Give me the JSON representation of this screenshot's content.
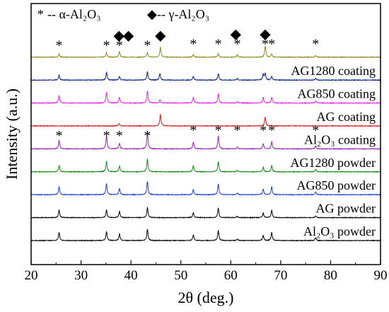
{
  "chart_data": {
    "type": "line",
    "title": "",
    "xlabel": "2θ (deg.)",
    "ylabel": "Intensity (a.u.)",
    "xlim": [
      20,
      90
    ],
    "x_ticks": [
      20,
      30,
      40,
      50,
      60,
      70,
      80,
      90
    ],
    "y_ticks_shown": false,
    "grid": false,
    "legend": {
      "placement": "top-left",
      "entries": [
        {
          "symbol": "*",
          "text": "-- α-Al₂O₃",
          "phase": "alpha"
        },
        {
          "symbol": "◆",
          "text": "-- γ-Al₂O₃",
          "phase": "gamma"
        }
      ]
    },
    "series": [
      {
        "name": "",
        "color": "#8b8b1f",
        "offset": 9,
        "peaks": [
          [
            25.6,
            0.25
          ],
          [
            35.1,
            0.35
          ],
          [
            37.7,
            0.45
          ],
          [
            43.3,
            0.35
          ],
          [
            45.9,
            0.8
          ],
          [
            52.5,
            0.2
          ],
          [
            57.5,
            0.3
          ],
          [
            61.3,
            0.2
          ],
          [
            66.9,
            0.9
          ],
          [
            68.2,
            0.25
          ],
          [
            77.0,
            0.12
          ]
        ]
      },
      {
        "name": "AG1280 coating",
        "color": "#0b1e8c",
        "offset": 8,
        "peaks": [
          [
            25.6,
            0.4
          ],
          [
            35.1,
            0.6
          ],
          [
            37.7,
            0.3
          ],
          [
            43.3,
            0.65
          ],
          [
            45.8,
            0.5
          ],
          [
            52.5,
            0.3
          ],
          [
            57.5,
            0.5
          ],
          [
            61.3,
            0.12
          ],
          [
            66.5,
            0.45
          ],
          [
            66.9,
            0.5
          ],
          [
            68.2,
            0.3
          ],
          [
            77.0,
            0.15
          ]
        ]
      },
      {
        "name": "AG850 coating",
        "color": "#ee22ee",
        "offset": 7,
        "peaks": [
          [
            25.6,
            0.6
          ],
          [
            35.1,
            0.85
          ],
          [
            37.7,
            0.45
          ],
          [
            43.3,
            0.95
          ],
          [
            45.8,
            0.25
          ],
          [
            52.5,
            0.45
          ],
          [
            57.5,
            0.7
          ],
          [
            61.3,
            0.12
          ],
          [
            66.5,
            0.45
          ],
          [
            68.2,
            0.45
          ],
          [
            77.0,
            0.15
          ]
        ]
      },
      {
        "name": "AG coating",
        "color": "#dd1111",
        "offset": 6,
        "peaks": [
          [
            37.6,
            0.2
          ],
          [
            45.9,
            0.9
          ],
          [
            66.9,
            0.7
          ]
        ]
      },
      {
        "name": "Al₂O₃ coating",
        "color": "#9a1fb8",
        "offset": 5,
        "peaks": [
          [
            25.6,
            0.65
          ],
          [
            35.1,
            1.05
          ],
          [
            37.7,
            0.45
          ],
          [
            43.3,
            1.3
          ],
          [
            52.5,
            0.55
          ],
          [
            57.5,
            1.0
          ],
          [
            61.3,
            0.15
          ],
          [
            66.5,
            0.4
          ],
          [
            68.2,
            0.55
          ],
          [
            77.0,
            0.25
          ]
        ]
      },
      {
        "name": "AG1280 powder",
        "color": "#148a14",
        "offset": 4,
        "peaks": [
          [
            25.6,
            0.5
          ],
          [
            35.1,
            0.85
          ],
          [
            37.7,
            0.45
          ],
          [
            43.3,
            1.0
          ],
          [
            52.5,
            0.5
          ],
          [
            57.5,
            0.8
          ],
          [
            61.3,
            0.12
          ],
          [
            66.5,
            0.35
          ],
          [
            68.2,
            0.5
          ],
          [
            77.0,
            0.2
          ]
        ]
      },
      {
        "name": "AG850 powder",
        "color": "#1a3fd6",
        "offset": 3,
        "peaks": [
          [
            25.6,
            0.6
          ],
          [
            35.1,
            0.9
          ],
          [
            37.7,
            0.5
          ],
          [
            43.3,
            1.05
          ],
          [
            52.5,
            0.4
          ],
          [
            57.5,
            0.85
          ],
          [
            61.3,
            0.12
          ],
          [
            66.5,
            0.45
          ],
          [
            68.2,
            0.65
          ],
          [
            77.0,
            0.22
          ]
        ]
      },
      {
        "name": "AG powder",
        "color": "#000000",
        "offset": 2,
        "peaks": [
          [
            25.6,
            0.6
          ],
          [
            35.1,
            0.6
          ],
          [
            37.7,
            0.5
          ],
          [
            43.3,
            0.8
          ],
          [
            52.5,
            0.4
          ],
          [
            57.5,
            0.75
          ],
          [
            61.3,
            0.1
          ],
          [
            66.5,
            0.35
          ],
          [
            68.2,
            0.6
          ],
          [
            77.0,
            0.15
          ]
        ]
      },
      {
        "name": "Al₂O₃ powder",
        "color": "#000000",
        "offset": 1,
        "peaks": [
          [
            25.6,
            0.65
          ],
          [
            35.1,
            0.7
          ],
          [
            37.7,
            0.5
          ],
          [
            43.3,
            0.9
          ],
          [
            52.5,
            0.45
          ],
          [
            57.5,
            0.8
          ],
          [
            61.3,
            0.12
          ],
          [
            66.5,
            0.4
          ],
          [
            68.2,
            0.65
          ],
          [
            77.0,
            0.2
          ]
        ]
      }
    ],
    "annotations": [
      {
        "trace": 0,
        "phase": "alpha",
        "x": 25.6
      },
      {
        "trace": 0,
        "phase": "alpha",
        "x": 35.1
      },
      {
        "trace": 0,
        "phase": "alpha",
        "x": 37.7
      },
      {
        "trace": 0,
        "phase": "alpha",
        "x": 43.3
      },
      {
        "trace": 0,
        "phase": "alpha",
        "x": 52.5
      },
      {
        "trace": 0,
        "phase": "alpha",
        "x": 57.5
      },
      {
        "trace": 0,
        "phase": "alpha",
        "x": 61.3
      },
      {
        "trace": 0,
        "phase": "alpha",
        "x": 66.9
      },
      {
        "trace": 0,
        "phase": "alpha",
        "x": 68.2
      },
      {
        "trace": 0,
        "phase": "alpha",
        "x": 77.0
      },
      {
        "trace": 0,
        "phase": "gamma",
        "x": 37.6
      },
      {
        "trace": 0,
        "phase": "gamma",
        "x": 39.5
      },
      {
        "trace": 0,
        "phase": "gamma",
        "x": 45.9
      },
      {
        "trace": 0,
        "phase": "gamma",
        "x": 61.0
      },
      {
        "trace": 0,
        "phase": "gamma",
        "x": 66.9
      },
      {
        "trace": 4,
        "phase": "alpha",
        "x": 25.6
      },
      {
        "trace": 4,
        "phase": "alpha",
        "x": 35.1
      },
      {
        "trace": 4,
        "phase": "alpha",
        "x": 37.7
      },
      {
        "trace": 4,
        "phase": "alpha",
        "x": 43.3
      },
      {
        "trace": 4,
        "phase": "alpha",
        "x": 52.5
      },
      {
        "trace": 4,
        "phase": "alpha",
        "x": 57.5
      },
      {
        "trace": 4,
        "phase": "alpha",
        "x": 61.3
      },
      {
        "trace": 4,
        "phase": "alpha",
        "x": 66.5
      },
      {
        "trace": 4,
        "phase": "alpha",
        "x": 68.2
      },
      {
        "trace": 4,
        "phase": "alpha",
        "x": 77.0
      }
    ]
  }
}
